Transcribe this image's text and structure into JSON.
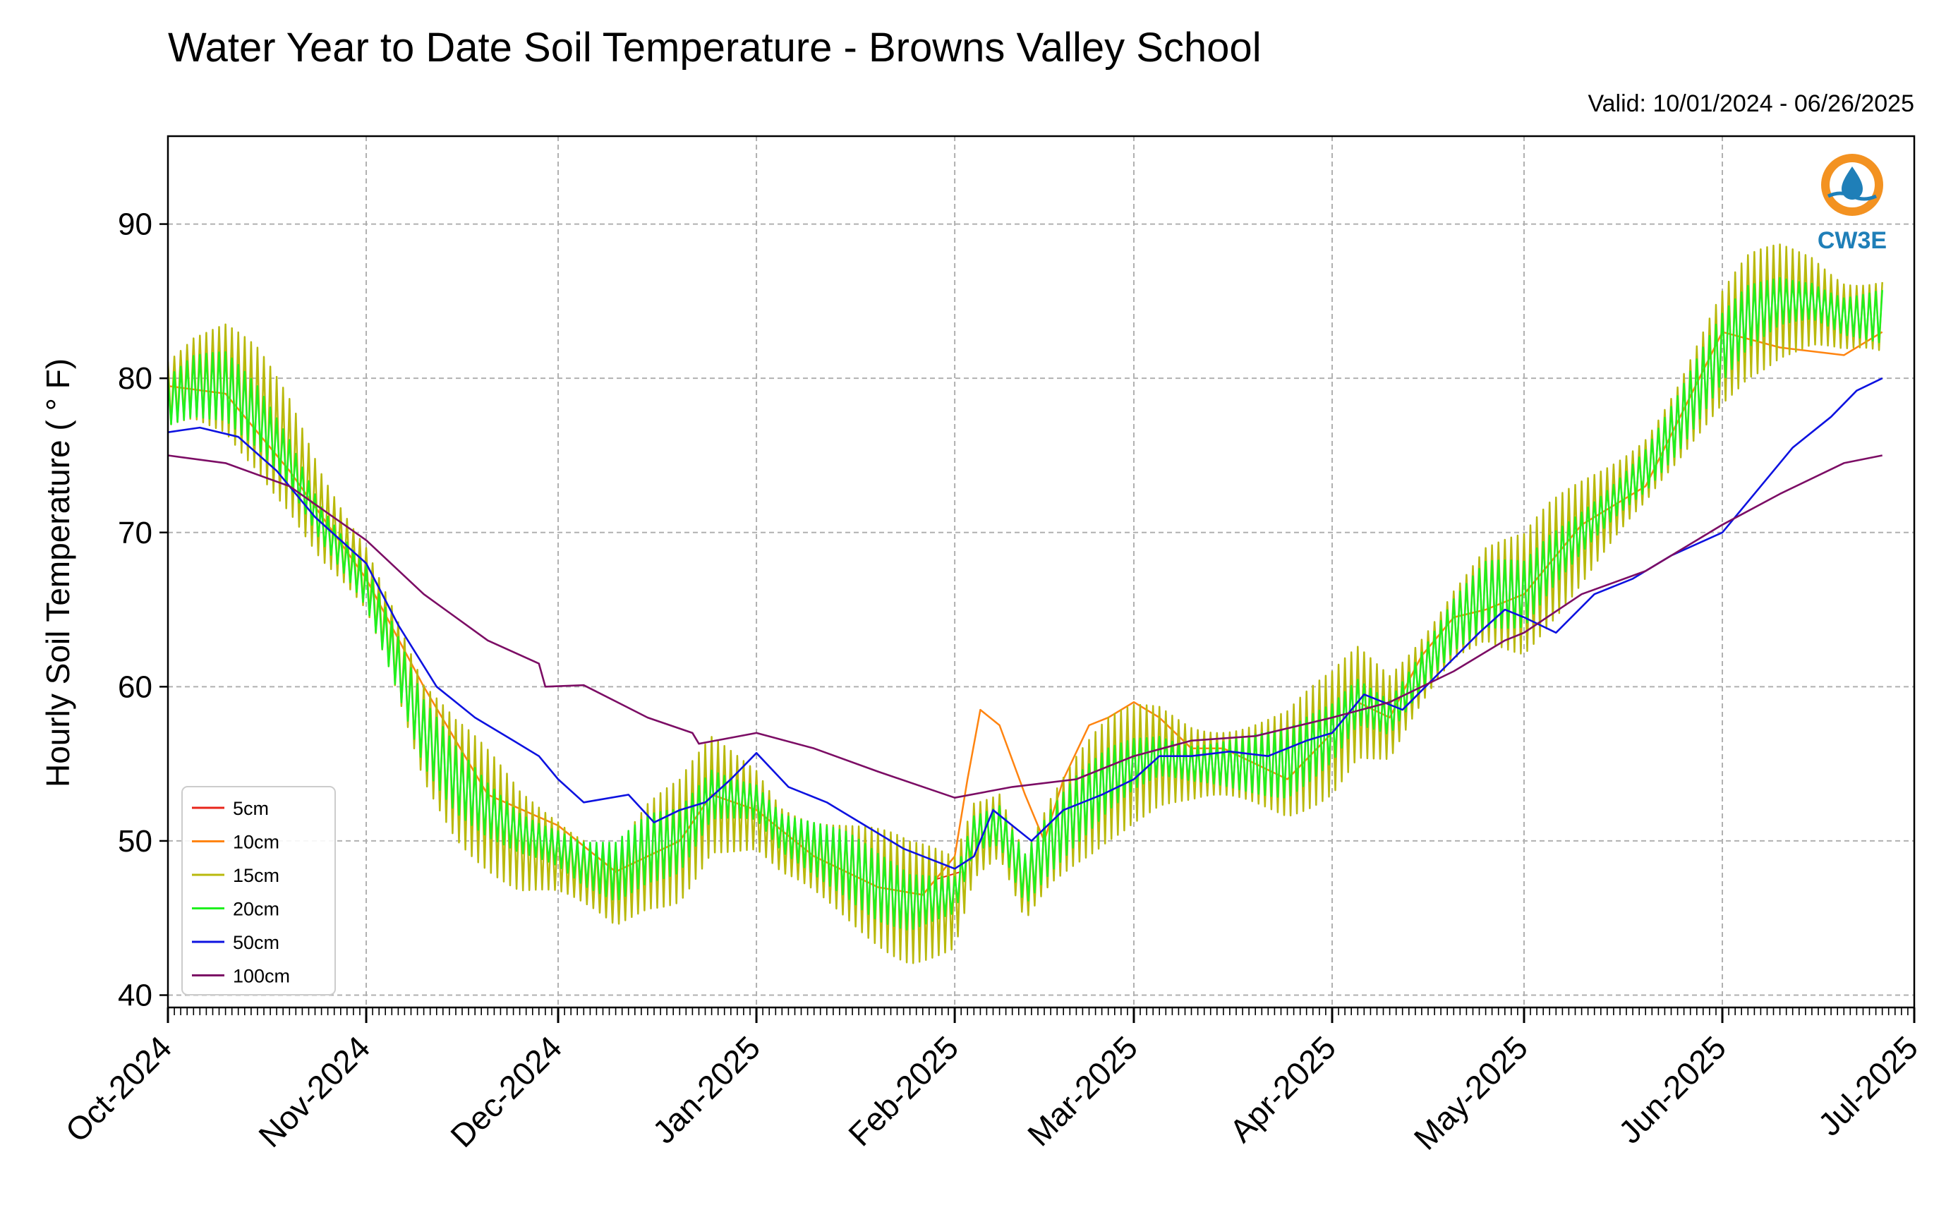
{
  "chart_data": {
    "type": "line",
    "title": "Water Year to Date Soil Temperature - Browns Valley School",
    "subtitle": "Valid: 10/01/2024 - 06/26/2025",
    "ylabel": "Hourly Soil Temperature ( ° F)",
    "xlabel": "",
    "ylim": [
      39.2,
      95.7
    ],
    "xlim": [
      "2024-10-01",
      "2025-07-01"
    ],
    "yticks": [
      40,
      50,
      60,
      70,
      80,
      90
    ],
    "xticks": [
      {
        "date": "2024-10-01",
        "label": "Oct-2024"
      },
      {
        "date": "2024-11-01",
        "label": "Nov-2024"
      },
      {
        "date": "2024-12-01",
        "label": "Dec-2024"
      },
      {
        "date": "2025-01-01",
        "label": "Jan-2025"
      },
      {
        "date": "2025-02-01",
        "label": "Feb-2025"
      },
      {
        "date": "2025-03-01",
        "label": "Mar-2025"
      },
      {
        "date": "2025-04-01",
        "label": "Apr-2025"
      },
      {
        "date": "2025-05-01",
        "label": "May-2025"
      },
      {
        "date": "2025-06-01",
        "label": "Jun-2025"
      },
      {
        "date": "2025-07-01",
        "label": "Jul-2025"
      }
    ],
    "grid": true,
    "legend_position": "lower-left",
    "logo_text": "CW3E",
    "series": [
      {
        "name": "5cm",
        "color": "#e8251b",
        "width": 2,
        "x": [
          "2025-01-29",
          "2025-02-02"
        ],
        "y": [
          47.5,
          48.0
        ]
      },
      {
        "name": "10cm",
        "color": "#ff8410",
        "width": 2.5,
        "x": [
          "2024-10-01",
          "2024-10-10",
          "2024-10-20",
          "2024-11-01",
          "2024-11-10",
          "2024-11-20",
          "2024-12-01",
          "2024-12-10",
          "2024-12-20",
          "2024-12-25",
          "2025-01-01",
          "2025-01-10",
          "2025-01-20",
          "2025-01-27",
          "2025-02-01",
          "2025-02-03",
          "2025-02-05",
          "2025-02-08",
          "2025-02-12",
          "2025-02-15",
          "2025-02-18",
          "2025-02-22",
          "2025-02-25",
          "2025-03-01",
          "2025-03-05",
          "2025-03-10",
          "2025-03-15",
          "2025-03-20",
          "2025-03-25",
          "2025-04-01",
          "2025-04-05",
          "2025-04-10",
          "2025-04-15",
          "2025-04-20",
          "2025-04-25",
          "2025-05-01",
          "2025-05-10",
          "2025-05-20",
          "2025-06-01",
          "2025-06-10",
          "2025-06-20",
          "2025-06-26"
        ],
        "y": [
          79.5,
          79,
          74,
          67,
          60,
          53,
          51,
          48,
          50,
          53,
          52,
          49,
          47,
          46.5,
          49,
          54,
          58.5,
          57.5,
          53,
          50,
          54,
          57.5,
          58,
          59,
          58,
          56,
          56,
          55,
          54,
          57,
          59,
          58,
          62,
          64.5,
          65,
          66,
          70.5,
          73,
          83,
          82,
          81.5,
          83
        ]
      },
      {
        "name": "15cm",
        "color": "#b9b90c",
        "width": 2.5,
        "amplitude": 4,
        "x": [
          "2024-10-01",
          "2024-10-05",
          "2024-10-10",
          "2024-10-15",
          "2024-10-20",
          "2024-10-25",
          "2024-11-01",
          "2024-11-05",
          "2024-11-10",
          "2024-11-15",
          "2024-11-20",
          "2024-11-25",
          "2024-12-01",
          "2024-12-05",
          "2024-12-10",
          "2024-12-15",
          "2024-12-20",
          "2024-12-25",
          "2025-01-01",
          "2025-01-05",
          "2025-01-10",
          "2025-01-15",
          "2025-01-20",
          "2025-01-25",
          "2025-02-01",
          "2025-02-04",
          "2025-02-08",
          "2025-02-12",
          "2025-02-16",
          "2025-02-20",
          "2025-02-25",
          "2025-03-01",
          "2025-03-05",
          "2025-03-10",
          "2025-03-15",
          "2025-03-20",
          "2025-03-25",
          "2025-04-01",
          "2025-04-05",
          "2025-04-10",
          "2025-04-15",
          "2025-04-20",
          "2025-04-25",
          "2025-05-01",
          "2025-05-05",
          "2025-05-10",
          "2025-05-15",
          "2025-05-20",
          "2025-05-25",
          "2025-06-01",
          "2025-06-05",
          "2025-06-10",
          "2025-06-15",
          "2025-06-20",
          "2025-06-26"
        ],
        "y": [
          79,
          80,
          80,
          78,
          75,
          71,
          67,
          63,
          57,
          54,
          52,
          50,
          49,
          48,
          47,
          49,
          50,
          53,
          52,
          50,
          49,
          48,
          47,
          46,
          46,
          50,
          51,
          47,
          50,
          52,
          54,
          55,
          55.5,
          55,
          55,
          55,
          55,
          57,
          59,
          58,
          61,
          64,
          66,
          66,
          68,
          70,
          72,
          74,
          77,
          82,
          84,
          85,
          85,
          84,
          84
        ]
      },
      {
        "name": "20cm",
        "color": "#1ff01f",
        "width": 2.5,
        "amplitude": 2.2,
        "x": [
          "2024-10-01",
          "2024-10-05",
          "2024-10-10",
          "2024-10-15",
          "2024-10-20",
          "2024-10-25",
          "2024-11-01",
          "2024-11-05",
          "2024-11-10",
          "2024-11-15",
          "2024-11-20",
          "2024-11-25",
          "2024-12-01",
          "2024-12-05",
          "2024-12-10",
          "2024-12-15",
          "2024-12-20",
          "2024-12-25",
          "2025-01-01",
          "2025-01-05",
          "2025-01-10",
          "2025-01-15",
          "2025-01-20",
          "2025-01-25",
          "2025-02-01",
          "2025-02-04",
          "2025-02-08",
          "2025-02-12",
          "2025-02-16",
          "2025-02-20",
          "2025-02-25",
          "2025-03-01",
          "2025-03-05",
          "2025-03-10",
          "2025-03-15",
          "2025-03-20",
          "2025-03-25",
          "2025-04-01",
          "2025-04-05",
          "2025-04-10",
          "2025-04-15",
          "2025-04-20",
          "2025-04-25",
          "2025-05-01",
          "2025-05-05",
          "2025-05-10",
          "2025-05-15",
          "2025-05-20",
          "2025-05-25",
          "2025-06-01",
          "2025-06-05",
          "2025-06-10",
          "2025-06-15",
          "2025-06-20",
          "2025-06-26"
        ],
        "y": [
          78.5,
          79.5,
          79.5,
          77.5,
          74.5,
          70.5,
          66.5,
          62.5,
          57,
          54,
          52,
          50.5,
          49.5,
          48.5,
          48,
          49.5,
          50,
          53,
          52.5,
          50.5,
          49.5,
          48.5,
          47,
          46,
          46.5,
          50.5,
          51,
          47.5,
          50,
          52,
          54,
          55,
          55.5,
          55,
          55,
          55,
          55,
          57,
          59,
          58,
          61,
          64,
          66,
          66,
          68,
          70,
          72,
          74,
          77,
          82,
          84,
          85,
          85,
          84,
          84
        ]
      },
      {
        "name": "50cm",
        "color": "#0d12e0",
        "width": 2.6,
        "x": [
          "2024-10-01",
          "2024-10-06",
          "2024-10-12",
          "2024-10-18",
          "2024-10-24",
          "2024-11-01",
          "2024-11-06",
          "2024-11-12",
          "2024-11-18",
          "2024-11-24",
          "2024-11-28",
          "2024-12-01",
          "2024-12-05",
          "2024-12-12",
          "2024-12-16",
          "2024-12-20",
          "2024-12-24",
          "2024-12-28",
          "2025-01-01",
          "2025-01-06",
          "2025-01-12",
          "2025-01-18",
          "2025-01-24",
          "2025-02-01",
          "2025-02-04",
          "2025-02-07",
          "2025-02-10",
          "2025-02-13",
          "2025-02-18",
          "2025-02-24",
          "2025-03-01",
          "2025-03-05",
          "2025-03-10",
          "2025-03-16",
          "2025-03-22",
          "2025-03-28",
          "2025-04-01",
          "2025-04-06",
          "2025-04-12",
          "2025-04-18",
          "2025-04-24",
          "2025-04-28",
          "2025-05-01",
          "2025-05-06",
          "2025-05-12",
          "2025-05-18",
          "2025-05-24",
          "2025-06-01",
          "2025-06-06",
          "2025-06-12",
          "2025-06-18",
          "2025-06-22",
          "2025-06-26"
        ],
        "y": [
          76.5,
          76.8,
          76.2,
          74,
          71,
          68,
          64,
          60,
          58,
          56.5,
          55.5,
          54,
          52.5,
          53,
          51.2,
          52,
          52.5,
          54,
          55.7,
          53.5,
          52.5,
          51,
          49.5,
          48.2,
          49,
          52,
          51,
          50,
          52,
          53,
          54,
          55.5,
          55.5,
          55.8,
          55.5,
          56.5,
          57,
          59.5,
          58.5,
          61,
          63.5,
          65,
          64.5,
          63.5,
          66,
          67,
          68.5,
          70,
          72.5,
          75.5,
          77.5,
          79.2,
          80
        ]
      },
      {
        "name": "100cm",
        "color": "#7c0d65",
        "width": 2.6,
        "x": [
          "2024-10-01",
          "2024-10-10",
          "2024-10-20",
          "2024-11-01",
          "2024-11-10",
          "2024-11-20",
          "2024-11-28",
          "2024-11-29",
          "2024-12-05",
          "2024-12-15",
          "2024-12-22",
          "2024-12-23",
          "2025-01-01",
          "2025-01-10",
          "2025-01-20",
          "2025-02-01",
          "2025-02-10",
          "2025-02-20",
          "2025-03-01",
          "2025-03-10",
          "2025-03-20",
          "2025-04-01",
          "2025-04-10",
          "2025-04-20",
          "2025-04-28",
          "2025-05-01",
          "2025-05-10",
          "2025-05-20",
          "2025-06-01",
          "2025-06-10",
          "2025-06-20",
          "2025-06-26"
        ],
        "y": [
          75,
          74.5,
          73,
          69.5,
          66,
          63,
          61.5,
          60,
          60.1,
          58,
          57,
          56.3,
          57,
          56,
          54.5,
          52.8,
          53.5,
          54,
          55.5,
          56.5,
          56.8,
          58,
          59,
          61,
          63,
          63.5,
          66,
          67.5,
          70.5,
          72.5,
          74.5,
          75
        ]
      }
    ]
  }
}
